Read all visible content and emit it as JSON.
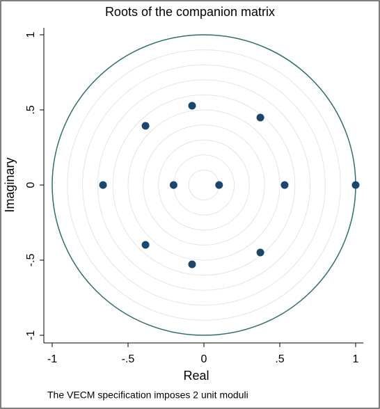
{
  "chart_data": {
    "type": "scatter",
    "title": "Roots of the companion matrix",
    "x_label": "Real",
    "y_label": "Imaginary",
    "note": "The VECM specification imposes 2 unit moduli",
    "x": [
      1,
      0.532,
      0.1,
      -0.2,
      -0.665,
      0.372,
      0.372,
      -0.078,
      -0.078,
      -0.385,
      -0.385
    ],
    "values": [
      0,
      0,
      0,
      0,
      0,
      0.449,
      -0.449,
      0.528,
      -0.528,
      0.394,
      -0.398
    ],
    "color": "#1a476f",
    "xlim": [
      -1,
      1
    ],
    "ylim": [
      -1,
      1
    ],
    "xticks": [
      -1,
      {
        "value": -0.5,
        "label": "-.5"
      },
      0,
      {
        "value": 0.5,
        "label": ".5"
      },
      1
    ],
    "yticks": [
      -1,
      {
        "value": -0.5,
        "label": "-.5"
      },
      0,
      {
        "value": 0.5,
        "label": ".5"
      },
      1
    ],
    "grid": true,
    "grid_radii": [
      0.1,
      0.2,
      0.3,
      0.4,
      0.5,
      0.6,
      0.7,
      0.8,
      0.9
    ],
    "unit_circle_radius": 1,
    "unit_circle_color": "#2d6e6a"
  }
}
